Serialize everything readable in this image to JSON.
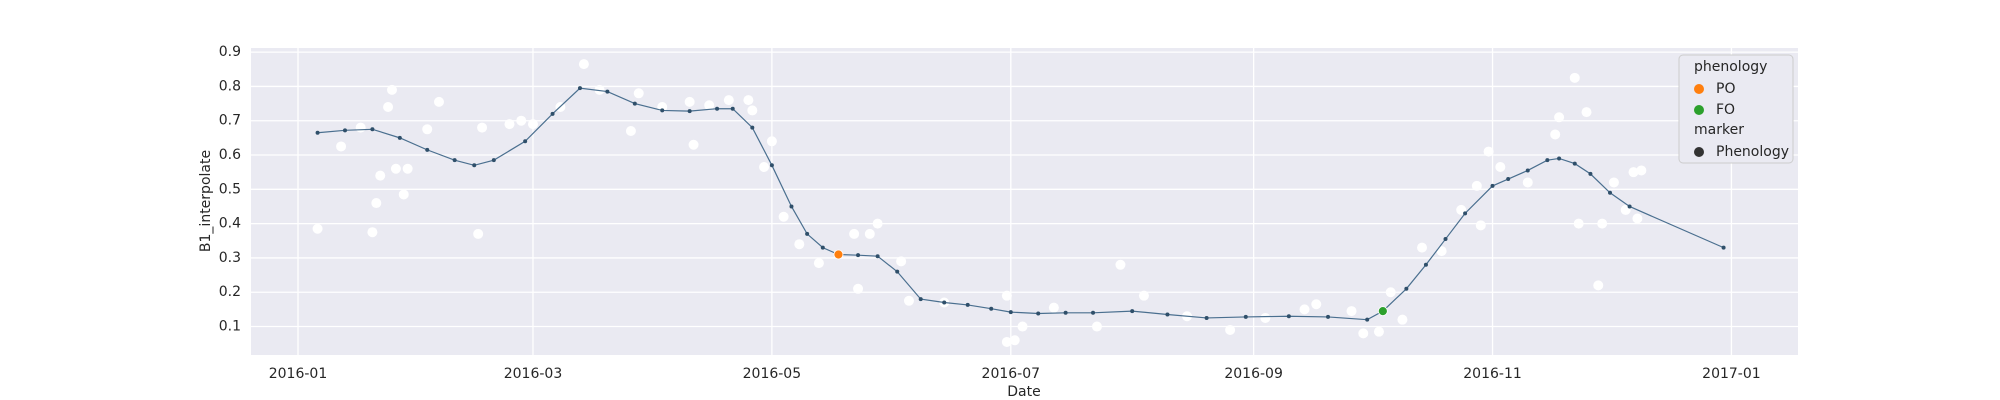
{
  "chart_data": {
    "type": "scatter",
    "xlabel": "Date",
    "ylabel": "B1_interpolate",
    "xlim": [
      "2015-12-20",
      "2017-01-18"
    ],
    "xticks": [
      {
        "value": "2016-01-01",
        "label": "2016-01"
      },
      {
        "value": "2016-03-01",
        "label": "2016-03"
      },
      {
        "value": "2016-05-01",
        "label": "2016-05"
      },
      {
        "value": "2016-07-01",
        "label": "2016-07"
      },
      {
        "value": "2016-09-01",
        "label": "2016-09"
      },
      {
        "value": "2016-11-01",
        "label": "2016-11"
      },
      {
        "value": "2017-01-01",
        "label": "2017-01"
      }
    ],
    "ylim": [
      0.017,
      0.912
    ],
    "yticks": [
      0.1,
      0.2,
      0.3,
      0.4,
      0.5,
      0.6,
      0.7,
      0.8,
      0.9
    ],
    "grid": true,
    "legend": {
      "corner": "upper right",
      "hue_title": "phenology",
      "style_title": "marker",
      "style_entries": [
        "Phenology"
      ]
    },
    "series": [
      {
        "color": "#ffffff",
        "line": false,
        "x": [
          "2016-01-06",
          "2016-01-12",
          "2016-01-17",
          "2016-01-20",
          "2016-01-21",
          "2016-01-22",
          "2016-01-24",
          "2016-01-25",
          "2016-01-26",
          "2016-01-28",
          "2016-01-29",
          "2016-02-03",
          "2016-02-06",
          "2016-02-16",
          "2016-02-17",
          "2016-02-24",
          "2016-02-27",
          "2016-03-01",
          "2016-03-08",
          "2016-03-14",
          "2016-03-18",
          "2016-03-26",
          "2016-03-28",
          "2016-04-03",
          "2016-04-10",
          "2016-04-11",
          "2016-04-15",
          "2016-04-20",
          "2016-04-25",
          "2016-04-26",
          "2016-04-29",
          "2016-05-01",
          "2016-05-04",
          "2016-05-08",
          "2016-05-13",
          "2016-05-22",
          "2016-05-23",
          "2016-05-26",
          "2016-05-28",
          "2016-06-03",
          "2016-06-05",
          "2016-06-14",
          "2016-06-30",
          "2016-06-30",
          "2016-07-02",
          "2016-07-04",
          "2016-07-12",
          "2016-07-23",
          "2016-07-29",
          "2016-08-04",
          "2016-08-15",
          "2016-08-26",
          "2016-09-04",
          "2016-09-14",
          "2016-09-17",
          "2016-09-26",
          "2016-09-29",
          "2016-10-03",
          "2016-10-06",
          "2016-10-09",
          "2016-10-14",
          "2016-10-19",
          "2016-10-24",
          "2016-10-28",
          "2016-10-29",
          "2016-10-31",
          "2016-11-03",
          "2016-11-10",
          "2016-11-17",
          "2016-11-18",
          "2016-11-22",
          "2016-11-23",
          "2016-11-25",
          "2016-11-28",
          "2016-11-29",
          "2016-12-02",
          "2016-12-05",
          "2016-12-07",
          "2016-12-08",
          "2016-12-09"
        ],
        "values": [
          0.385,
          0.625,
          0.68,
          0.375,
          0.46,
          0.54,
          0.74,
          0.79,
          0.56,
          0.485,
          0.56,
          0.675,
          0.755,
          0.37,
          0.68,
          0.69,
          0.7,
          0.69,
          0.74,
          0.865,
          0.79,
          0.67,
          0.78,
          0.74,
          0.755,
          0.63,
          0.745,
          0.76,
          0.76,
          0.73,
          0.565,
          0.64,
          0.42,
          0.34,
          0.285,
          0.37,
          0.21,
          0.37,
          0.4,
          0.29,
          0.175,
          0.17,
          0.19,
          0.055,
          0.06,
          0.1,
          0.155,
          0.1,
          0.28,
          0.19,
          0.13,
          0.09,
          0.125,
          0.15,
          0.165,
          0.145,
          0.08,
          0.085,
          0.2,
          0.12,
          0.33,
          0.32,
          0.44,
          0.51,
          0.395,
          0.61,
          0.565,
          0.52,
          0.66,
          0.71,
          0.825,
          0.4,
          0.725,
          0.22,
          0.4,
          0.52,
          0.44,
          0.55,
          0.415,
          0.555
        ]
      },
      {
        "color": "#4a6f8f",
        "line": true,
        "x": [
          "2016-01-06",
          "2016-01-13",
          "2016-01-20",
          "2016-01-27",
          "2016-02-03",
          "2016-02-10",
          "2016-02-15",
          "2016-02-20",
          "2016-02-28",
          "2016-03-06",
          "2016-03-13",
          "2016-03-20",
          "2016-03-27",
          "2016-04-03",
          "2016-04-10",
          "2016-04-17",
          "2016-04-21",
          "2016-04-26",
          "2016-05-01",
          "2016-05-06",
          "2016-05-10",
          "2016-05-14",
          "2016-05-18",
          "2016-05-23",
          "2016-05-28",
          "2016-06-02",
          "2016-06-08",
          "2016-06-14",
          "2016-06-20",
          "2016-06-26",
          "2016-07-01",
          "2016-07-08",
          "2016-07-15",
          "2016-07-22",
          "2016-08-01",
          "2016-08-10",
          "2016-08-20",
          "2016-08-30",
          "2016-09-10",
          "2016-09-20",
          "2016-09-30",
          "2016-10-04",
          "2016-10-10",
          "2016-10-15",
          "2016-10-20",
          "2016-10-25",
          "2016-11-01",
          "2016-11-05",
          "2016-11-10",
          "2016-11-15",
          "2016-11-18",
          "2016-11-22",
          "2016-11-26",
          "2016-12-01",
          "2016-12-06",
          "2016-12-30"
        ],
        "values": [
          0.665,
          0.672,
          0.675,
          0.65,
          0.615,
          0.585,
          0.57,
          0.585,
          0.64,
          0.72,
          0.795,
          0.785,
          0.75,
          0.73,
          0.728,
          0.735,
          0.735,
          0.68,
          0.57,
          0.45,
          0.37,
          0.33,
          0.31,
          0.308,
          0.305,
          0.26,
          0.18,
          0.17,
          0.163,
          0.152,
          0.142,
          0.138,
          0.14,
          0.14,
          0.145,
          0.135,
          0.125,
          0.128,
          0.13,
          0.128,
          0.12,
          0.145,
          0.21,
          0.28,
          0.355,
          0.43,
          0.51,
          0.53,
          0.555,
          0.585,
          0.59,
          0.575,
          0.545,
          0.49,
          0.45,
          0.33
        ]
      },
      {
        "name": "PO",
        "color": "#ff7f0e",
        "line": false,
        "x": [
          "2016-05-18"
        ],
        "values": [
          0.31
        ]
      },
      {
        "name": "FO",
        "color": "#2ca02c",
        "line": false,
        "x": [
          "2016-10-04"
        ],
        "values": [
          0.145
        ]
      }
    ]
  }
}
